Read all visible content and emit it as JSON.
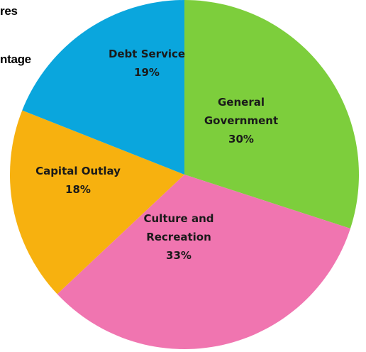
{
  "fragments": {
    "top_left_1": "res",
    "top_left_2": "ntage"
  },
  "chart_data": {
    "type": "pie",
    "title": "",
    "slices": [
      {
        "label_lines": [
          "General",
          "Government"
        ],
        "value": 30,
        "value_label": "30%",
        "color": "#7dce3c"
      },
      {
        "label_lines": [
          "Culture and",
          "Recreation"
        ],
        "value": 33,
        "value_label": "33%",
        "color": "#f075b0"
      },
      {
        "label_lines": [
          "Capital Outlay"
        ],
        "value": 18,
        "value_label": "18%",
        "color": "#f7b10f"
      },
      {
        "label_lines": [
          "Debt Service"
        ],
        "value": 19,
        "value_label": "19%",
        "color": "#0aa6dd"
      }
    ],
    "start_angle_deg": 0,
    "direction": "clockwise",
    "label_color": "#1a1a1a"
  }
}
